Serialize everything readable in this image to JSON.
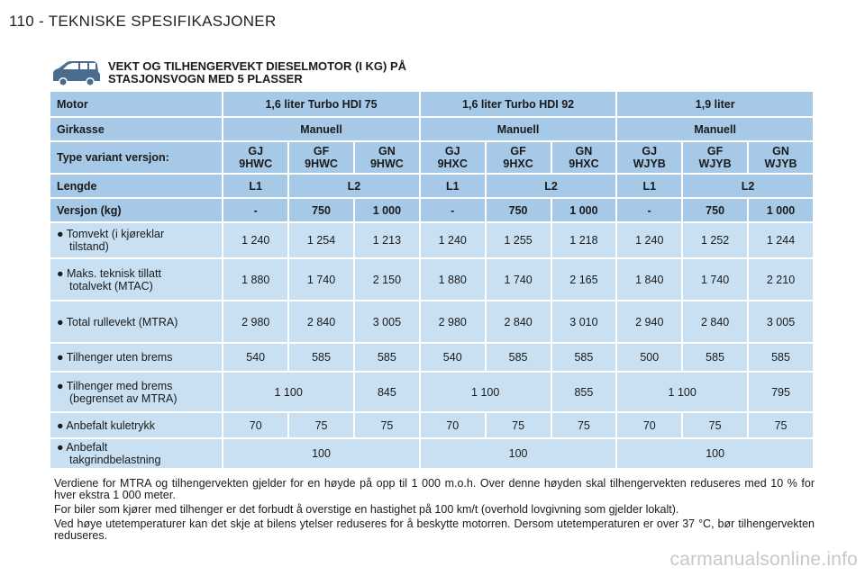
{
  "page_header": "110 - TEKNISKE SPESIFIKASJONER",
  "section": {
    "title_line1": "VEKT OG TILHENGERVEKT DIESELMOTOR (I KG) PÅ",
    "title_line2": "STASJONSVOGN MED 5 PLASSER",
    "icon": "car-icon"
  },
  "table": {
    "motor": {
      "label": "Motor",
      "values": [
        "1,6 liter Turbo HDI 75",
        "1,6 liter Turbo HDI 92",
        "1,9 liter"
      ]
    },
    "girkasse": {
      "label": "Girkasse",
      "values": [
        "Manuell",
        "Manuell",
        "Manuell"
      ]
    },
    "type_variant": {
      "label": "Type variant versjon:",
      "values": [
        {
          "a": "GJ",
          "b": "9HWC"
        },
        {
          "a": "GF",
          "b": "9HWC"
        },
        {
          "a": "GN",
          "b": "9HWC"
        },
        {
          "a": "GJ",
          "b": "9HXC"
        },
        {
          "a": "GF",
          "b": "9HXC"
        },
        {
          "a": "GN",
          "b": "9HXC"
        },
        {
          "a": "GJ",
          "b": "WJYB"
        },
        {
          "a": "GF",
          "b": "WJYB"
        },
        {
          "a": "GN",
          "b": "WJYB"
        }
      ]
    },
    "lengde": {
      "label": "Lengde",
      "values": [
        "L1",
        "L2",
        "L1",
        "L2",
        "L1",
        "L2"
      ]
    },
    "versjon": {
      "label": "Versjon (kg)",
      "values": [
        "-",
        "750",
        "1 000",
        "-",
        "750",
        "1 000",
        "-",
        "750",
        "1 000"
      ]
    },
    "tomvekt": {
      "label1": "● Tomvekt (i kjøreklar",
      "label2": "tilstand)",
      "values": [
        "1 240",
        "1 254",
        "1 213",
        "1 240",
        "1 255",
        "1 218",
        "1 240",
        "1 252",
        "1 244"
      ]
    },
    "maks": {
      "label1": "● Maks. teknisk tillatt",
      "label2": "totalvekt (MTAC)",
      "values": [
        "1 880",
        "1 740",
        "2 150",
        "1 880",
        "1 740",
        "2 165",
        "1 840",
        "1 740",
        "2 210"
      ]
    },
    "total_rullevekt": {
      "label": "● Total rullevekt (MTRA)",
      "values": [
        "2 980",
        "2 840",
        "3 005",
        "2 980",
        "2 840",
        "3 010",
        "2 940",
        "2 840",
        "3 005"
      ]
    },
    "uten_brems": {
      "label": "● Tilhenger uten brems",
      "values": [
        "540",
        "585",
        "585",
        "540",
        "585",
        "585",
        "500",
        "585",
        "585"
      ]
    },
    "med_brems": {
      "label1": "● Tilhenger med brems",
      "label2": "(begrenset av MTRA)",
      "values": [
        "1 100",
        "845",
        "1 100",
        "855",
        "1 100",
        "795"
      ]
    },
    "kuletrykk": {
      "label": "● Anbefalt kuletrykk",
      "values": [
        "70",
        "75",
        "75",
        "70",
        "75",
        "75",
        "70",
        "75",
        "75"
      ]
    },
    "takgrind": {
      "label1": "● Anbefalt",
      "label2": "takgrindbelastning",
      "values": [
        "100",
        "100",
        "100"
      ]
    }
  },
  "notes": [
    "Verdiene for MTRA og tilhengervekten gjelder for en høyde på opp til 1 000 m.o.h. Over denne høyden skal tilhengervekten reduseres med 10 % for hver ekstra 1 000 meter.",
    "For biler som kjører med tilhenger er det forbudt å overstige en hastighet på 100 km/t (overhold lovgivning som gjelder lokalt).",
    "Ved høye utetemperaturer kan det skje at bilens ytelser reduseres for å beskytte motorren. Dersom utetemperaturen er over 37 °C, bør tilhengervekten reduseres."
  ],
  "watermark": "carmanualsonline.info",
  "colors": {
    "header_cell": "#a5c9e6",
    "data_cell": "#c8e0f2"
  }
}
